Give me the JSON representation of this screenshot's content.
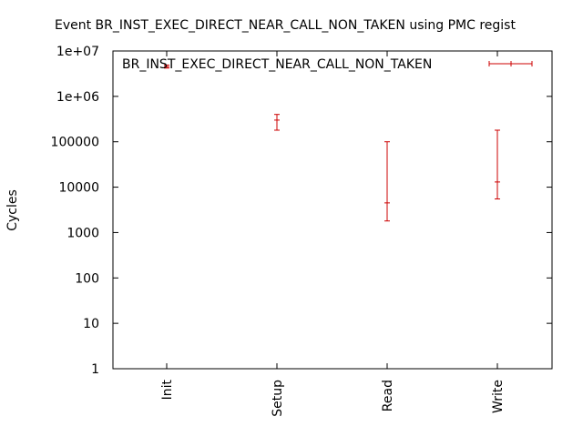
{
  "chart_data": {
    "type": "errorbar",
    "title": "Event BR_INST_EXEC_DIRECT_NEAR_CALL_NON_TAKEN using PMC regist",
    "xlabel": "",
    "ylabel": "Cycles",
    "categories": [
      "Init",
      "Setup",
      "Read",
      "Write"
    ],
    "y_scale": "log",
    "ylim": [
      1,
      10000000
    ],
    "y_ticks": [
      1,
      10,
      100,
      1000,
      10000,
      100000,
      1000000,
      10000000
    ],
    "y_tick_labels": [
      "1",
      "10",
      "100",
      "1000",
      "10000",
      "100000",
      "1e+06",
      "1e+07"
    ],
    "legend_position": "top-right",
    "grid": false,
    "series": [
      {
        "name": "BR_INST_EXEC_DIRECT_NEAR_CALL_NON_TAKEN",
        "color": "#cc0000",
        "points": [
          {
            "category": "Init",
            "value": 4500000,
            "low": 4200000,
            "high": 4900000
          },
          {
            "category": "Setup",
            "value": 300000,
            "low": 180000,
            "high": 400000
          },
          {
            "category": "Read",
            "value": 4500,
            "low": 1800,
            "high": 100000
          },
          {
            "category": "Write",
            "value": 13000,
            "low": 5500,
            "high": 180000
          }
        ]
      }
    ]
  }
}
